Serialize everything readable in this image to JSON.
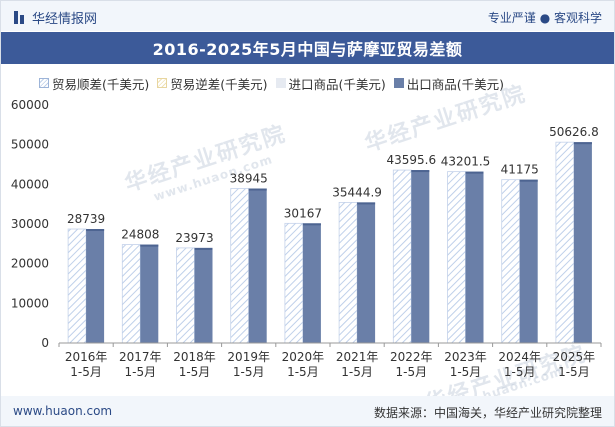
{
  "header": {
    "brand": "华经情报网",
    "tagline": "专业严谨 ● 客观科学"
  },
  "footer": {
    "site": "www.huaon.com",
    "source": "数据来源：中国海关，华经产业研究院整理"
  },
  "watermark": {
    "text": "华经产业研究院",
    "url": "www.huaon.com"
  },
  "colors": {
    "title_bg": "#3c5a99",
    "export_bar": "#6a7fa8",
    "export_bar_top": "#4d6491",
    "surplus_hatch": "#bfd0ea",
    "deficit_hatch": "#f0e2b6",
    "import_bar": "#e6eaf1"
  },
  "chart_data": {
    "type": "bar",
    "title": "2016-2025年5月中国与萨摩亚贸易差额",
    "categories": [
      "2016年\n1-5月",
      "2017年\n1-5月",
      "2018年\n1-5月",
      "2019年\n1-5月",
      "2020年\n1-5月",
      "2021年\n1-5月",
      "2022年\n1-5月",
      "2023年\n1-5月",
      "2024年\n1-5月",
      "2025年\n1-5月"
    ],
    "series": [
      {
        "name": "贸易顺差(千美元)",
        "values": [
          28739,
          24808,
          23973,
          38945,
          30167,
          35444.9,
          43595.6,
          43201.5,
          41175,
          50626.8
        ],
        "data_labels": [
          "28739",
          "24808",
          "23973",
          "38945",
          "30167",
          "35444.9",
          "43595.6",
          "43201.5",
          "41175",
          "50626.8"
        ]
      },
      {
        "name": "贸易逆差(千美元)",
        "values": [
          0,
          0,
          0,
          0,
          0,
          0,
          0,
          0,
          0,
          0
        ]
      },
      {
        "name": "进口商品(千美元)",
        "values": [
          0,
          0,
          0,
          0,
          0,
          0,
          0,
          0,
          0,
          0
        ]
      },
      {
        "name": "出口商品(千美元)",
        "values": [
          28739,
          24808,
          23973,
          38945,
          30167,
          35444.9,
          43595.6,
          43201.5,
          41175,
          50626.8
        ]
      }
    ],
    "yticks": [
      "0",
      "10000",
      "20000",
      "30000",
      "40000",
      "50000",
      "60000"
    ],
    "ylim": [
      0,
      60000
    ],
    "xlabel": "",
    "ylabel": "",
    "grid": false,
    "legend_position": "top"
  }
}
